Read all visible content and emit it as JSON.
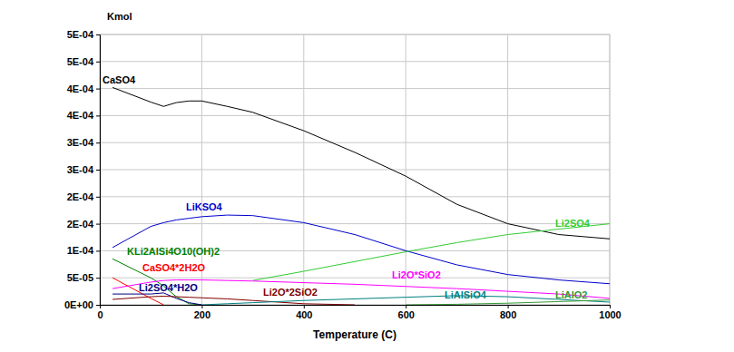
{
  "chart_data": {
    "type": "line",
    "y_label": "Kmol",
    "x_label": "Temperature (C)",
    "x": [
      25,
      100,
      125,
      150,
      175,
      200,
      250,
      300,
      400,
      500,
      600,
      700,
      800,
      900,
      1000
    ],
    "xlim": [
      0,
      1000
    ],
    "xticks": [
      0,
      200,
      400,
      600,
      800,
      1000
    ],
    "ylim": [
      0,
      0.0005
    ],
    "yticks": [
      {
        "value": 0,
        "label": "0E+00"
      },
      {
        "value": 5e-05,
        "label": "5E-05"
      },
      {
        "value": 0.0001,
        "label": "1E-04"
      },
      {
        "value": 0.00015,
        "label": "2E-04"
      },
      {
        "value": 0.0002,
        "label": "2E-04"
      },
      {
        "value": 0.00025,
        "label": "3E-04"
      },
      {
        "value": 0.0003,
        "label": "3E-04"
      },
      {
        "value": 0.00035,
        "label": "4E-04"
      },
      {
        "value": 0.0004,
        "label": "4E-04"
      },
      {
        "value": 0.00045,
        "label": "5E-04"
      },
      {
        "value": 0.0005,
        "label": "5E-04"
      }
    ],
    "grid": true,
    "series": [
      {
        "name": "CaSO4",
        "color": "#000000",
        "values": [
          0.000402,
          0.000375,
          0.000367,
          0.000374,
          0.000377,
          0.000377,
          0.000367,
          0.000356,
          0.000322,
          0.000282,
          0.000238,
          0.000186,
          0.00015,
          0.00013,
          0.000122
        ]
      },
      {
        "name": "LiKSO4",
        "color": "#0000cc",
        "values": [
          0.000106,
          0.000145,
          0.000152,
          0.000157,
          0.00016,
          0.000163,
          0.000166,
          0.000165,
          0.000152,
          0.00013,
          0.0001,
          7.4e-05,
          5.6e-05,
          4.6e-05,
          3.9e-05
        ]
      },
      {
        "name": "Li2SO4",
        "color": "#33cc33",
        "values": [
          null,
          null,
          null,
          null,
          null,
          null,
          null,
          4.5e-05,
          6.2e-05,
          8e-05,
          9.8e-05,
          0.000115,
          0.00013,
          0.00014,
          0.00015
        ]
      },
      {
        "name": "KLi2AlSi4O10(OH)2",
        "color": "#008000",
        "values": [
          8.5e-05,
          5e-05,
          3.5e-05,
          1.5e-05,
          2e-06,
          0,
          null,
          null,
          null,
          null,
          null,
          null,
          null,
          null,
          null
        ]
      },
      {
        "name": "CaSO4*2H2O",
        "color": "#ff0000",
        "values": [
          5e-05,
          1.2e-05,
          0,
          null,
          null,
          null,
          null,
          null,
          null,
          null,
          null,
          null,
          null,
          null,
          null
        ]
      },
      {
        "name": "Li2SO4*H2O",
        "color": "#000080",
        "values": [
          2e-05,
          2e-05,
          2.2e-05,
          1.2e-05,
          4e-06,
          0,
          null,
          null,
          null,
          null,
          null,
          null,
          null,
          null,
          null
        ]
      },
      {
        "name": "Li2O*SiO2",
        "color": "#ff00ff",
        "values": [
          3e-05,
          4.2e-05,
          4.5e-05,
          4.6e-05,
          4.6e-05,
          4.6e-05,
          4.5e-05,
          4.4e-05,
          4.1e-05,
          3.8e-05,
          3.4e-05,
          3e-05,
          2.5e-05,
          2e-05,
          1.2e-05
        ]
      },
      {
        "name": "Li2O*2SiO2",
        "color": "#800000",
        "values": [
          1e-05,
          1.5e-05,
          1.6e-05,
          1.5e-05,
          1.4e-05,
          1.3e-05,
          1.1e-05,
          8e-06,
          2e-06,
          0,
          null,
          null,
          null,
          null,
          null
        ]
      },
      {
        "name": "LiAlSiO4",
        "color": "#008080",
        "values": [
          null,
          null,
          null,
          null,
          null,
          0,
          2e-06,
          4e-06,
          8e-06,
          1.1e-05,
          1.4e-05,
          1.7e-05,
          1.5e-05,
          1e-05,
          5e-06
        ]
      },
      {
        "name": "LiAlO2",
        "color": "#339933",
        "values": [
          null,
          null,
          null,
          null,
          null,
          null,
          null,
          null,
          null,
          null,
          0,
          1e-06,
          3e-06,
          6e-06,
          9e-06
        ]
      }
    ]
  }
}
